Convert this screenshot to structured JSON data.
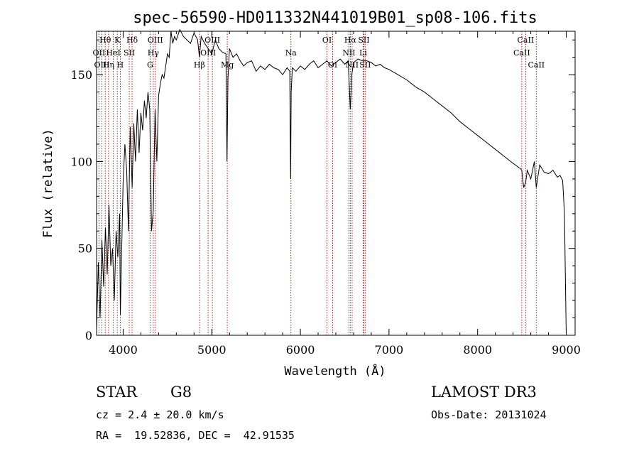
{
  "chart_data": {
    "type": "line",
    "title": "spec-56590-HD011332N441019B01_sp08-106.fits",
    "xlabel": "Wavelength (Å)",
    "ylabel": "Flux (relative)",
    "xlim": [
      3700,
      9100
    ],
    "ylim": [
      0,
      175
    ],
    "xticks": [
      4000,
      5000,
      6000,
      7000,
      8000,
      9000
    ],
    "yticks": [
      0,
      50,
      100,
      150
    ],
    "grid": false,
    "series": [
      {
        "color": "#000000",
        "x": [
          3700,
          3720,
          3740,
          3760,
          3780,
          3800,
          3820,
          3840,
          3860,
          3880,
          3900,
          3920,
          3940,
          3960,
          3968,
          3980,
          4000,
          4020,
          4040,
          4060,
          4080,
          4101,
          4120,
          4140,
          4160,
          4180,
          4200,
          4220,
          4240,
          4260,
          4280,
          4300,
          4320,
          4340,
          4360,
          4380,
          4400,
          4420,
          4440,
          4460,
          4480,
          4500,
          4520,
          4540,
          4560,
          4580,
          4600,
          4640,
          4680,
          4720,
          4760,
          4800,
          4840,
          4861,
          4880,
          4920,
          4960,
          5000,
          5040,
          5080,
          5120,
          5160,
          5172,
          5183,
          5200,
          5240,
          5280,
          5320,
          5360,
          5400,
          5450,
          5500,
          5550,
          5600,
          5650,
          5700,
          5750,
          5800,
          5850,
          5880,
          5890,
          5896,
          5910,
          5950,
          6000,
          6050,
          6100,
          6150,
          6200,
          6250,
          6300,
          6350,
          6400,
          6450,
          6500,
          6540,
          6563,
          6580,
          6600,
          6650,
          6700,
          6750,
          6800,
          6850,
          6900,
          6950,
          7000,
          7100,
          7200,
          7300,
          7400,
          7500,
          7600,
          7700,
          7800,
          7900,
          8000,
          8100,
          8200,
          8300,
          8400,
          8480,
          8498,
          8520,
          8542,
          8560,
          8600,
          8640,
          8662,
          8700,
          8750,
          8800,
          8850,
          8900,
          8930,
          8960,
          8980,
          9000
        ],
        "y": [
          3,
          42,
          10,
          55,
          28,
          62,
          35,
          75,
          40,
          50,
          20,
          60,
          45,
          70,
          12,
          40,
          88,
          110,
          95,
          60,
          120,
          85,
          122,
          100,
          130,
          105,
          128,
          118,
          135,
          125,
          140,
          130,
          60,
          72,
          130,
          100,
          138,
          145,
          150,
          148,
          155,
          162,
          160,
          175,
          168,
          172,
          170,
          176,
          172,
          170,
          168,
          174,
          170,
          160,
          172,
          168,
          165,
          162,
          170,
          165,
          163,
          162,
          100,
          148,
          165,
          160,
          162,
          158,
          155,
          157,
          158,
          152,
          155,
          153,
          156,
          154,
          153,
          150,
          154,
          152,
          90,
          140,
          154,
          152,
          155,
          153,
          156,
          158,
          154,
          156,
          158,
          155,
          157,
          159,
          156,
          158,
          130,
          150,
          157,
          159,
          158,
          158,
          157,
          155,
          156,
          154,
          153,
          150,
          147,
          143,
          140,
          136,
          132,
          128,
          123,
          119,
          115,
          111,
          107,
          103,
          99,
          96,
          95,
          85,
          88,
          95,
          90,
          100,
          85,
          98,
          94,
          93,
          95,
          91,
          92,
          89,
          70,
          0
        ]
      }
    ],
    "lines": [
      {
        "name": "Hθ",
        "x": 3798,
        "row": 0
      },
      {
        "name": "OII",
        "x": 3727,
        "row": 1
      },
      {
        "name": "OIII",
        "x": 3760,
        "row": 2
      },
      {
        "name": "HeI",
        "x": 3889,
        "row": 1
      },
      {
        "name": "K",
        "x": 3934,
        "row": 0
      },
      {
        "name": "Hη",
        "x": 3835,
        "row": 2
      },
      {
        "name": "SII",
        "x": 4069,
        "row": 1
      },
      {
        "name": "Hδ",
        "x": 4101,
        "row": 0
      },
      {
        "name": "H",
        "x": 3968,
        "row": 2
      },
      {
        "name": "OIII",
        "x": 4363,
        "row": 0
      },
      {
        "name": "Hγ",
        "x": 4340,
        "row": 1
      },
      {
        "name": "G",
        "x": 4304,
        "row": 2
      },
      {
        "name": "OIII",
        "x": 5007,
        "row": 0
      },
      {
        "name": "OIII",
        "x": 4959,
        "row": 1
      },
      {
        "name": "Hβ",
        "x": 4861,
        "row": 2
      },
      {
        "name": "Mg",
        "x": 5175,
        "row": 2
      },
      {
        "name": "Na",
        "x": 5893,
        "row": 1
      },
      {
        "name": "OI",
        "x": 6300,
        "row": 0
      },
      {
        "name": "OI",
        "x": 6364,
        "row": 2
      },
      {
        "name": "Hα",
        "x": 6563,
        "row": 0
      },
      {
        "name": "SII",
        "x": 6716,
        "row": 0
      },
      {
        "name": "NII",
        "x": 6548,
        "row": 1
      },
      {
        "name": "Li",
        "x": 6708,
        "row": 1
      },
      {
        "name": "NII",
        "x": 6584,
        "row": 2
      },
      {
        "name": "SII",
        "x": 6731,
        "row": 2
      },
      {
        "name": "CaII",
        "x": 8542,
        "row": 0
      },
      {
        "name": "CaII",
        "x": 8498,
        "row": 1
      },
      {
        "name": "CaII",
        "x": 8662,
        "row": 2
      }
    ],
    "line_color": "#b22222"
  },
  "info": {
    "class": "STAR",
    "subclass": "G8",
    "survey": "LAMOST DR3",
    "cz": "cz = 2.4 ± 20.0 km/s",
    "obs_date": "Obs-Date: 20131024",
    "radec": "RA =  19.52836, DEC =  42.91535"
  }
}
